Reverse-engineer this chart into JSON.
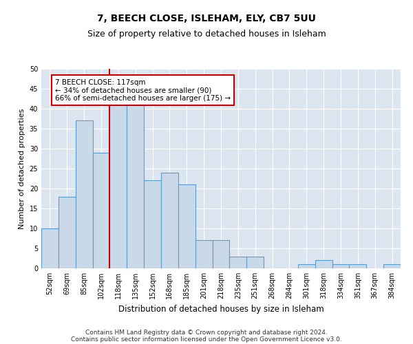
{
  "title": "7, BEECH CLOSE, ISLEHAM, ELY, CB7 5UU",
  "subtitle": "Size of property relative to detached houses in Isleham",
  "xlabel": "Distribution of detached houses by size in Isleham",
  "ylabel": "Number of detached properties",
  "categories": [
    "52sqm",
    "69sqm",
    "85sqm",
    "102sqm",
    "118sqm",
    "135sqm",
    "152sqm",
    "168sqm",
    "185sqm",
    "201sqm",
    "218sqm",
    "235sqm",
    "251sqm",
    "268sqm",
    "284sqm",
    "301sqm",
    "318sqm",
    "334sqm",
    "351sqm",
    "367sqm",
    "384sqm"
  ],
  "values": [
    10,
    18,
    37,
    29,
    41,
    41,
    22,
    24,
    21,
    7,
    7,
    3,
    3,
    0,
    0,
    1,
    2,
    1,
    1,
    0,
    1
  ],
  "bar_color": "#c9d9e8",
  "bar_edge_color": "#5b9bd5",
  "bar_width": 1.0,
  "property_line_index": 4,
  "property_line_color": "#cc0000",
  "annotation_text": "7 BEECH CLOSE: 117sqm\n← 34% of detached houses are smaller (90)\n66% of semi-detached houses are larger (175) →",
  "annotation_box_color": "#ffffff",
  "annotation_box_edge": "#cc0000",
  "ylim": [
    0,
    50
  ],
  "yticks": [
    0,
    5,
    10,
    15,
    20,
    25,
    30,
    35,
    40,
    45,
    50
  ],
  "background_color": "#dce6f0",
  "footer_line1": "Contains HM Land Registry data © Crown copyright and database right 2024.",
  "footer_line2": "Contains public sector information licensed under the Open Government Licence v3.0.",
  "title_fontsize": 10,
  "subtitle_fontsize": 9,
  "xlabel_fontsize": 8.5,
  "ylabel_fontsize": 8,
  "tick_fontsize": 7,
  "annotation_fontsize": 7.5,
  "footer_fontsize": 6.5
}
